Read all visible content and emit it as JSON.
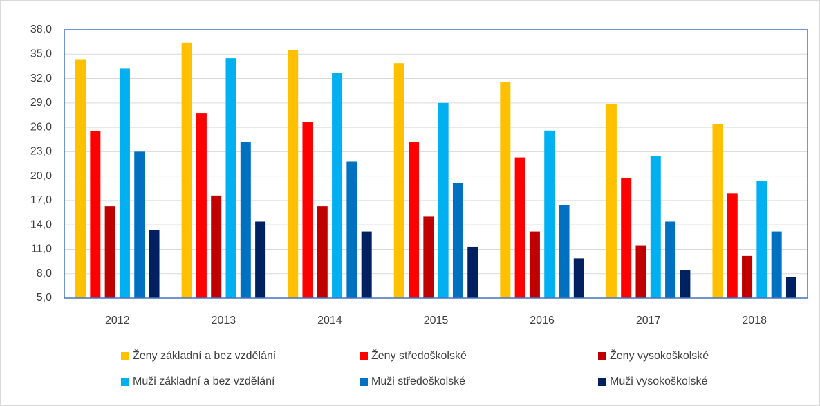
{
  "chart_data": {
    "type": "bar",
    "categories": [
      "2012",
      "2013",
      "2014",
      "2015",
      "2016",
      "2017",
      "2018"
    ],
    "series": [
      {
        "name": "Ženy základní a bez vzdělání",
        "color": "#FFC000",
        "values": [
          34.3,
          36.4,
          35.5,
          33.9,
          31.6,
          28.9,
          26.4
        ]
      },
      {
        "name": "Ženy středoškolské",
        "color": "#FF0000",
        "values": [
          25.5,
          27.7,
          26.6,
          24.2,
          22.3,
          19.8,
          17.9
        ]
      },
      {
        "name": "Ženy vysokoškolské",
        "color": "#C00000",
        "values": [
          16.3,
          17.6,
          16.3,
          15.0,
          13.2,
          11.5,
          10.2
        ]
      },
      {
        "name": "Muži základní a bez vzdělání",
        "color": "#00B0F0",
        "values": [
          33.2,
          34.5,
          32.7,
          29.0,
          25.6,
          22.5,
          19.4
        ]
      },
      {
        "name": "Muži středoškolské",
        "color": "#0070C0",
        "values": [
          23.0,
          24.2,
          21.8,
          19.2,
          16.4,
          14.4,
          13.2
        ]
      },
      {
        "name": "Muži vysokoškolské",
        "color": "#002060",
        "values": [
          13.4,
          14.4,
          13.2,
          11.3,
          9.9,
          8.4,
          7.6
        ]
      }
    ],
    "ylim": [
      5,
      38
    ],
    "yticks": [
      {
        "value": 5,
        "label": "5,0"
      },
      {
        "value": 8,
        "label": "8,0"
      },
      {
        "value": 11,
        "label": "11,0"
      },
      {
        "value": 14,
        "label": "14,0"
      },
      {
        "value": 17,
        "label": "17,0"
      },
      {
        "value": 20,
        "label": "20,0"
      },
      {
        "value": 23,
        "label": "23,0"
      },
      {
        "value": 26,
        "label": "26,0"
      },
      {
        "value": 29,
        "label": "29,0"
      },
      {
        "value": 32,
        "label": "32,0"
      },
      {
        "value": 35,
        "label": "35,0"
      },
      {
        "value": 38,
        "label": "38,0"
      }
    ],
    "grid": true
  }
}
